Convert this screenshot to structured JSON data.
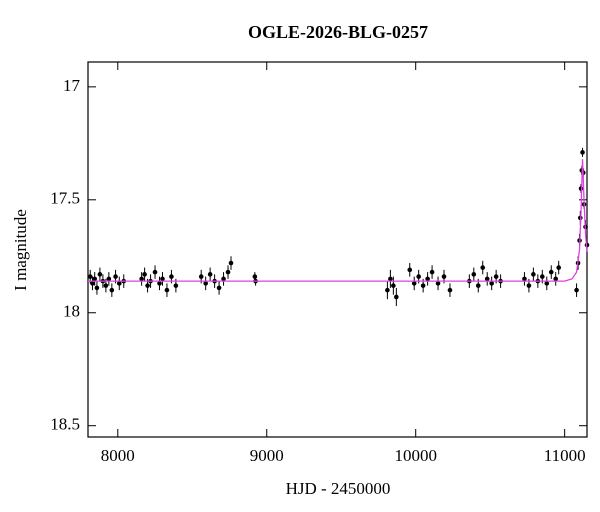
{
  "chart_data": {
    "type": "scatter",
    "title": "OGLE-2026-BLG-0257",
    "x_label": "HJD - 2450000",
    "y_label": "I magnitude",
    "xlim": [
      7800,
      11150
    ],
    "ylim": [
      16.89,
      18.55
    ],
    "y_inverted": true,
    "xticks": [
      8000,
      9000,
      10000,
      11000
    ],
    "yticks": [
      17,
      17.5,
      18,
      18.5
    ],
    "series": [
      {
        "type": "scatter",
        "color": "#000000",
        "x": [
          7815,
          7830,
          7845,
          7860,
          7880,
          7900,
          7920,
          7940,
          7960,
          7985,
          8010,
          8040,
          8160,
          8180,
          8200,
          8220,
          8250,
          8280,
          8300,
          8330,
          8360,
          8390,
          8560,
          8590,
          8620,
          8650,
          8680,
          8710,
          8740,
          8760,
          8920,
          8925,
          9810,
          9830,
          9850,
          9870,
          9960,
          9990,
          10020,
          10050,
          10080,
          10110,
          10150,
          10190,
          10230,
          10360,
          10390,
          10420,
          10450,
          10480,
          10510,
          10540,
          10570,
          10730,
          10760,
          10790,
          10820,
          10850,
          10880,
          10910,
          10940,
          10960,
          11080,
          11090,
          11100,
          11105,
          11110,
          11115,
          11120,
          11125,
          11130,
          11140,
          11150
        ],
        "values": [
          17.84,
          17.87,
          17.85,
          17.89,
          17.83,
          17.86,
          17.88,
          17.85,
          17.9,
          17.84,
          17.87,
          17.86,
          17.85,
          17.83,
          17.88,
          17.86,
          17.82,
          17.87,
          17.85,
          17.9,
          17.84,
          17.88,
          17.84,
          17.87,
          17.83,
          17.86,
          17.89,
          17.85,
          17.82,
          17.78,
          17.84,
          17.86,
          17.9,
          17.85,
          17.88,
          17.93,
          17.81,
          17.87,
          17.84,
          17.88,
          17.85,
          17.82,
          17.87,
          17.84,
          17.9,
          17.86,
          17.83,
          17.88,
          17.8,
          17.85,
          17.87,
          17.84,
          17.86,
          17.85,
          17.88,
          17.83,
          17.86,
          17.84,
          17.87,
          17.82,
          17.85,
          17.8,
          17.9,
          17.78,
          17.68,
          17.58,
          17.45,
          17.37,
          17.29,
          17.38,
          17.52,
          17.62,
          17.7
        ],
        "errors": [
          0.03,
          0.03,
          0.03,
          0.03,
          0.03,
          0.03,
          0.03,
          0.03,
          0.03,
          0.03,
          0.03,
          0.03,
          0.03,
          0.03,
          0.03,
          0.03,
          0.03,
          0.03,
          0.03,
          0.03,
          0.03,
          0.03,
          0.03,
          0.03,
          0.03,
          0.03,
          0.03,
          0.03,
          0.03,
          0.03,
          0.02,
          0.02,
          0.04,
          0.04,
          0.04,
          0.04,
          0.03,
          0.03,
          0.03,
          0.03,
          0.03,
          0.03,
          0.03,
          0.03,
          0.03,
          0.03,
          0.03,
          0.03,
          0.03,
          0.03,
          0.03,
          0.03,
          0.03,
          0.03,
          0.03,
          0.03,
          0.03,
          0.03,
          0.03,
          0.03,
          0.03,
          0.03,
          0.03,
          0.03,
          0.03,
          0.03,
          0.02,
          0.02,
          0.02,
          0.02,
          0.02,
          0.03,
          0.03
        ]
      },
      {
        "type": "line",
        "color": "#e040e0",
        "x": [
          7800,
          11000,
          11050,
          11080,
          11100,
          11110,
          11120,
          11130,
          11140,
          11150
        ],
        "values": [
          17.86,
          17.86,
          17.85,
          17.82,
          17.72,
          17.55,
          17.32,
          17.5,
          17.65,
          17.73
        ]
      }
    ]
  }
}
